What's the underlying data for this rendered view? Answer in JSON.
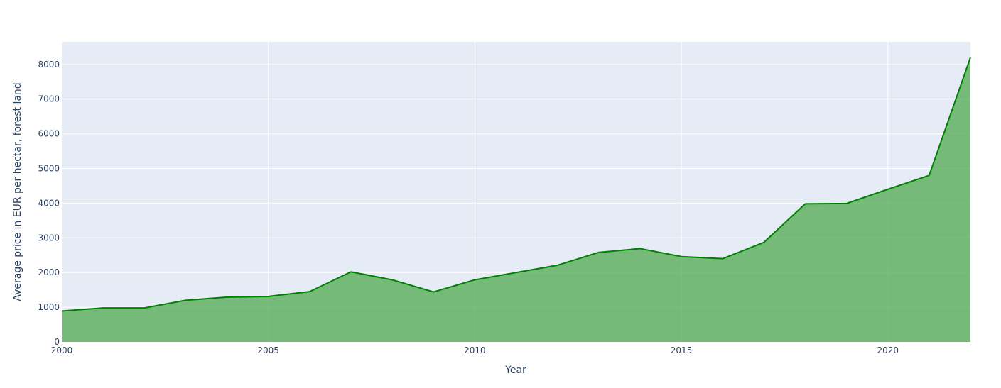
{
  "chart_data": {
    "type": "area",
    "title": "",
    "xlabel": "Year",
    "ylabel": "Average price in EUR per hectar, forest land",
    "xlim": [
      2000,
      2022
    ],
    "ylim": [
      0,
      8650
    ],
    "x_ticks": [
      2000,
      2005,
      2010,
      2015,
      2020
    ],
    "y_ticks": [
      0,
      1000,
      2000,
      3000,
      4000,
      5000,
      6000,
      7000,
      8000
    ],
    "grid": true,
    "legend": "none",
    "colors": {
      "plot_bg": "#e5ecf6",
      "grid": "#ffffff",
      "line": "#008000",
      "fill": "#4fa94f"
    },
    "series": [
      {
        "x": [
          2000,
          2001,
          2002,
          2003,
          2004,
          2005,
          2006,
          2007,
          2008,
          2009,
          2010,
          2011,
          2012,
          2013,
          2014,
          2015,
          2016,
          2017,
          2018,
          2019,
          2020,
          2021,
          2022
        ],
        "values": [
          890,
          980,
          980,
          1200,
          1290,
          1310,
          1450,
          2020,
          1790,
          1440,
          1790,
          2000,
          2210,
          2580,
          2690,
          2460,
          2400,
          2870,
          3980,
          3990,
          4400,
          4800,
          8200
        ]
      }
    ]
  }
}
